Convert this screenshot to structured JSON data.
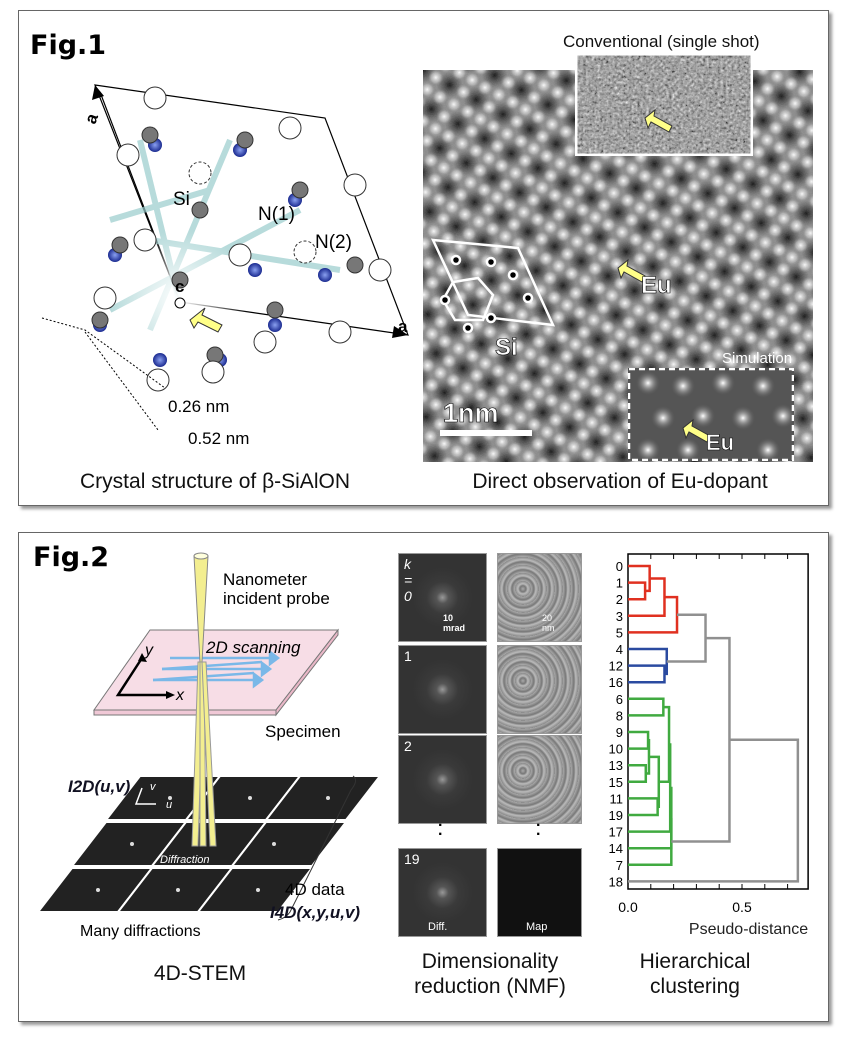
{
  "fig1": {
    "title": "Fig.1",
    "structure": {
      "axis_a1": "a",
      "axis_a2": "a",
      "axis_c": "c",
      "site_si": "Si",
      "site_n1": "N(1)",
      "site_n2": "N(2)",
      "dist1": "0.26 nm",
      "dist2": "0.52 nm",
      "caption": "Crystal structure of β-SiAlON"
    },
    "observation": {
      "inset_conventional": "Conventional (single shot)",
      "eu_label": "Eu",
      "si_label": "Si",
      "scale_bar": "1nm",
      "inset_simulation": "Simulation",
      "sim_eu_label": "Eu",
      "caption": "Direct observation of Eu-dopant"
    }
  },
  "fig2": {
    "title": "Fig.2",
    "stem": {
      "probe_label_1": "Nanometer",
      "probe_label_2": "incident probe",
      "scanning": "2D scanning",
      "axis_x": "x",
      "axis_y": "y",
      "specimen": "Specimen",
      "i2d": "I2D(u,v)",
      "axis_u": "u",
      "axis_v": "v",
      "diffraction": "Diffraction",
      "data4d": "4D data",
      "i4d": "I4D(x,y,u,v)",
      "many": "Many diffractions",
      "caption": "4D-STEM"
    },
    "nmf": {
      "rows": [
        {
          "k": "k = 0",
          "diff_scale": "10 mrad",
          "map_scale": "20 nm"
        },
        {
          "k": "1"
        },
        {
          "k": "2"
        },
        {
          "k": "19",
          "diff_label": "Diff.",
          "map_label": "Map"
        }
      ],
      "ellipsis": "·\n·",
      "caption_1": "Dimensionality",
      "caption_2": "reduction (NMF)"
    },
    "caption_clustering_1": "Hierarchical",
    "caption_clustering_2": "clustering"
  },
  "chart_data": {
    "type": "dendrogram",
    "orientation": "horizontal",
    "xlabel": "Pseudo-distance",
    "xticks": [
      "0.0",
      "0.5"
    ],
    "xlim": [
      0,
      0.79
    ],
    "leaves": [
      "0",
      "1",
      "2",
      "3",
      "5",
      "4",
      "12",
      "16",
      "6",
      "8",
      "9",
      "10",
      "13",
      "15",
      "11",
      "19",
      "17",
      "14",
      "7",
      "18"
    ],
    "colors": {
      "red": "#e03020",
      "blue": "#2a4aa0",
      "green": "#40aa40",
      "gray": "#909090"
    },
    "merges": [
      {
        "a": "1",
        "b": "2",
        "h": 0.075,
        "c": "red"
      },
      {
        "a": "0",
        "b": "m0",
        "h": 0.095,
        "c": "red"
      },
      {
        "a": "m1",
        "b": "3",
        "h": 0.16,
        "c": "red"
      },
      {
        "a": "m2",
        "b": "5",
        "h": 0.215,
        "c": "red"
      },
      {
        "a": "12",
        "b": "16",
        "h": 0.16,
        "c": "blue"
      },
      {
        "a": "4",
        "b": "m4",
        "h": 0.17,
        "c": "blue"
      },
      {
        "a": "m3",
        "b": "m5",
        "h": 0.34,
        "c": "gray"
      },
      {
        "a": "6",
        "b": "8",
        "h": 0.155,
        "c": "green"
      },
      {
        "a": "9",
        "b": "10",
        "h": 0.088,
        "c": "green"
      },
      {
        "a": "13",
        "b": "15",
        "h": 0.078,
        "c": "green"
      },
      {
        "a": "m8",
        "b": "m9",
        "h": 0.092,
        "c": "green"
      },
      {
        "a": "11",
        "b": "19",
        "h": 0.13,
        "c": "green"
      },
      {
        "a": "m10",
        "b": "m11",
        "h": 0.135,
        "c": "green"
      },
      {
        "a": "m7",
        "b": "m12",
        "h": 0.18,
        "c": "green"
      },
      {
        "a": "m13",
        "b": "17",
        "h": 0.185,
        "c": "green"
      },
      {
        "a": "m14",
        "b": "14",
        "h": 0.19,
        "c": "green"
      },
      {
        "a": "m15",
        "b": "7",
        "h": 0.19,
        "c": "green"
      },
      {
        "a": "m6",
        "b": "m16",
        "h": 0.445,
        "c": "gray"
      },
      {
        "a": "m17",
        "b": "18",
        "h": 0.745,
        "c": "gray"
      }
    ]
  }
}
